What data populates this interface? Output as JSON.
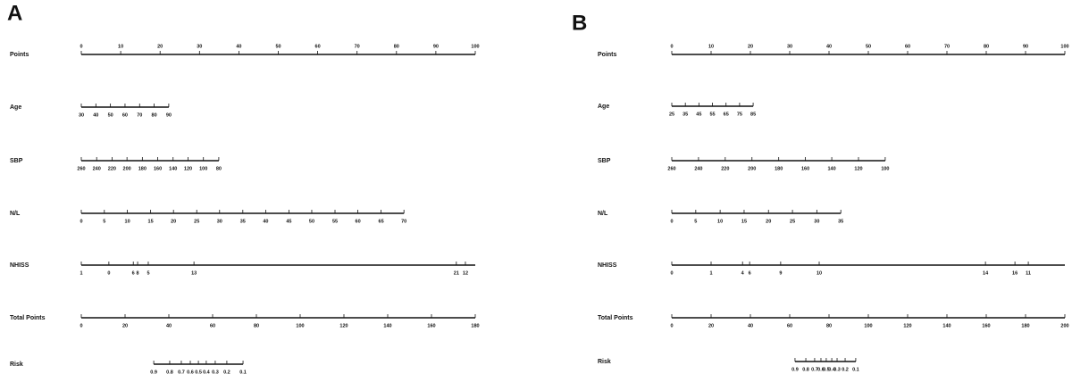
{
  "chart_data": [
    {
      "type": "nomogram",
      "title": "A",
      "rows": [
        {
          "name": "Points",
          "xlim": [
            0,
            100
          ],
          "ticks": [
            0,
            10,
            20,
            30,
            40,
            50,
            60,
            70,
            80,
            90,
            100
          ]
        },
        {
          "name": "Age",
          "ticks": [
            {
              "value": 0,
              "label": "30"
            },
            {
              "value": 3.7,
              "label": "40"
            },
            {
              "value": 7.4,
              "label": "50"
            },
            {
              "value": 11.1,
              "label": "60"
            },
            {
              "value": 14.8,
              "label": "70"
            },
            {
              "value": 18.5,
              "label": "80"
            },
            {
              "value": 22.2,
              "label": "90"
            }
          ]
        },
        {
          "name": "SBP",
          "ticks": [
            {
              "value": 0,
              "label": "260"
            },
            {
              "value": 3.9,
              "label": "240"
            },
            {
              "value": 7.8,
              "label": "220"
            },
            {
              "value": 11.6,
              "label": "200"
            },
            {
              "value": 15.5,
              "label": "180"
            },
            {
              "value": 19.4,
              "label": "160"
            },
            {
              "value": 23.3,
              "label": "140"
            },
            {
              "value": 27.1,
              "label": "120"
            },
            {
              "value": 31,
              "label": "100"
            },
            {
              "value": 34.9,
              "label": "80"
            }
          ]
        },
        {
          "name": "N/L",
          "ticks": [
            {
              "value": 0,
              "label": "0"
            },
            {
              "value": 5.85,
              "label": "5"
            },
            {
              "value": 11.7,
              "label": "10"
            },
            {
              "value": 17.6,
              "label": "15"
            },
            {
              "value": 23.4,
              "label": "20"
            },
            {
              "value": 29.3,
              "label": "25"
            },
            {
              "value": 35.1,
              "label": "30"
            },
            {
              "value": 41,
              "label": "35"
            },
            {
              "value": 46.8,
              "label": "40"
            },
            {
              "value": 52.7,
              "label": "45"
            },
            {
              "value": 58.5,
              "label": "50"
            },
            {
              "value": 64.4,
              "label": "55"
            },
            {
              "value": 70.2,
              "label": "60"
            },
            {
              "value": 76.1,
              "label": "65"
            },
            {
              "value": 81.9,
              "label": "70"
            }
          ]
        },
        {
          "name": "NHISS",
          "xlim": [
            0,
            100
          ],
          "ticks": [
            {
              "value": 0,
              "label": "1"
            },
            {
              "value": 7,
              "label": "0"
            },
            {
              "value": 13.2,
              "label": "6"
            },
            {
              "value": 14.3,
              "label": "8"
            },
            {
              "value": 17,
              "label": "5"
            },
            {
              "value": 28.6,
              "label": "13"
            },
            {
              "value": 95.2,
              "label": "21"
            },
            {
              "value": 97.5,
              "label": "12"
            }
          ]
        },
        {
          "name": "Total Points",
          "xlim": [
            0,
            180
          ],
          "ticks": [
            0,
            20,
            40,
            60,
            80,
            100,
            120,
            140,
            160,
            180
          ]
        },
        {
          "name": "Risk",
          "ticks": [
            {
              "value": 33.1,
              "label": "0.9"
            },
            {
              "value": 40.4,
              "label": "0.8"
            },
            {
              "value": 45.7,
              "label": "0.7"
            },
            {
              "value": 49.8,
              "label": "0.6"
            },
            {
              "value": 53.5,
              "label": "0.5"
            },
            {
              "value": 57.1,
              "label": "0.4"
            },
            {
              "value": 61.2,
              "label": "0.3"
            },
            {
              "value": 66.5,
              "label": "0.2"
            },
            {
              "value": 73.9,
              "label": "0.1"
            }
          ]
        }
      ]
    },
    {
      "type": "nomogram",
      "title": "B",
      "rows": [
        {
          "name": "Points",
          "xlim": [
            0,
            100
          ],
          "ticks": [
            0,
            10,
            20,
            30,
            40,
            50,
            60,
            70,
            80,
            90,
            100
          ]
        },
        {
          "name": "Age",
          "ticks": [
            {
              "value": 0,
              "label": "25"
            },
            {
              "value": 3.45,
              "label": "35"
            },
            {
              "value": 6.9,
              "label": "45"
            },
            {
              "value": 10.35,
              "label": "55"
            },
            {
              "value": 13.8,
              "label": "65"
            },
            {
              "value": 17.25,
              "label": "75"
            },
            {
              "value": 20.7,
              "label": "85"
            }
          ]
        },
        {
          "name": "SBP",
          "ticks": [
            {
              "value": 0,
              "label": "260"
            },
            {
              "value": 6.8,
              "label": "240"
            },
            {
              "value": 13.6,
              "label": "220"
            },
            {
              "value": 20.4,
              "label": "200"
            },
            {
              "value": 27.2,
              "label": "180"
            },
            {
              "value": 34,
              "label": "160"
            },
            {
              "value": 40.7,
              "label": "140"
            },
            {
              "value": 47.5,
              "label": "120"
            },
            {
              "value": 54.3,
              "label": "100"
            }
          ]
        },
        {
          "name": "N/L",
          "ticks": [
            {
              "value": 0,
              "label": "0"
            },
            {
              "value": 6.1,
              "label": "5"
            },
            {
              "value": 12.3,
              "label": "10"
            },
            {
              "value": 18.4,
              "label": "15"
            },
            {
              "value": 24.6,
              "label": "20"
            },
            {
              "value": 30.7,
              "label": "25"
            },
            {
              "value": 36.9,
              "label": "30"
            },
            {
              "value": 43,
              "label": "35"
            }
          ]
        },
        {
          "name": "NHISS",
          "xlim": [
            0,
            100
          ],
          "ticks": [
            {
              "value": 0,
              "label": "0"
            },
            {
              "value": 10,
              "label": "1"
            },
            {
              "value": 18,
              "label": "4"
            },
            {
              "value": 19.8,
              "label": "6"
            },
            {
              "value": 27.7,
              "label": "9"
            },
            {
              "value": 37.5,
              "label": "10"
            },
            {
              "value": 79.8,
              "label": "14"
            },
            {
              "value": 87.3,
              "label": "16"
            },
            {
              "value": 90.7,
              "label": "11"
            }
          ]
        },
        {
          "name": "Total Points",
          "xlim": [
            0,
            200
          ],
          "ticks": [
            0,
            20,
            40,
            60,
            80,
            100,
            120,
            140,
            160,
            180,
            200
          ]
        },
        {
          "name": "Risk",
          "ticks": [
            {
              "value": 62.7,
              "label": "0.9"
            },
            {
              "value": 68.2,
              "label": "0.8"
            },
            {
              "value": 72.7,
              "label": "0.7"
            },
            {
              "value": 75.9,
              "label": "0.6"
            },
            {
              "value": 78.6,
              "label": "0.5"
            },
            {
              "value": 81.4,
              "label": "0.4"
            },
            {
              "value": 84.1,
              "label": "0.3"
            },
            {
              "value": 88.2,
              "label": "0.2"
            },
            {
              "value": 93.6,
              "label": "0.1"
            }
          ]
        }
      ]
    }
  ]
}
